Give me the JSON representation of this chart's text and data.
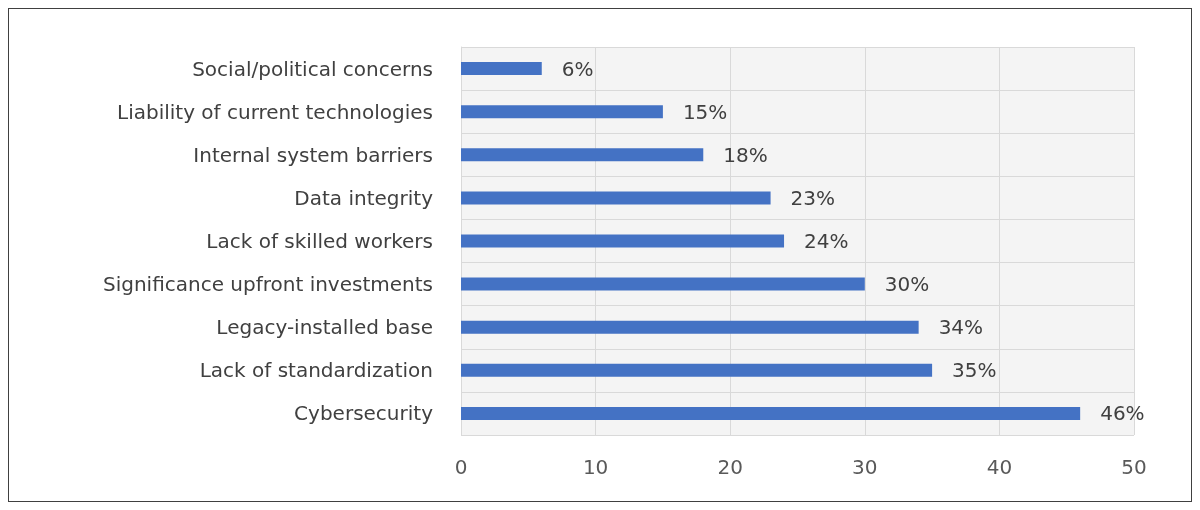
{
  "chart_data": {
    "type": "bar",
    "orientation": "horizontal",
    "categories": [
      "Social/political concerns",
      "Liability of current technologies",
      "Internal system barriers",
      "Data integrity",
      "Lack of skilled workers",
      "Significance upfront investments",
      "Legacy-installed base",
      "Lack of standardization",
      "Cybersecurity"
    ],
    "values": [
      6,
      15,
      18,
      23,
      24,
      30,
      34,
      35,
      46
    ],
    "value_labels": [
      "6%",
      "15%",
      "18%",
      "23%",
      "24%",
      "30%",
      "34%",
      "35%",
      "46%"
    ],
    "color": "#4472c4",
    "xlim": [
      0,
      50
    ],
    "xticks": [
      0,
      10,
      20,
      30,
      40,
      50
    ],
    "grid": true
  }
}
